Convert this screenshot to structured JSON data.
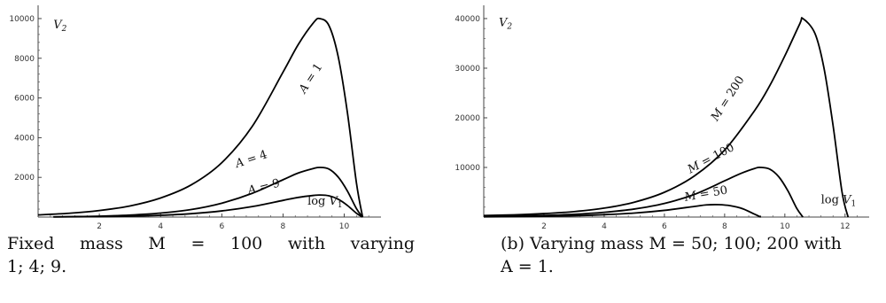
{
  "chart_data": [
    {
      "type": "line",
      "ylabel": "V",
      "ylabel_sub": "2",
      "xlabel": "log V",
      "xlabel_sub": "1",
      "xlim": [
        0,
        11.2
      ],
      "ylim": [
        0,
        10400
      ],
      "x_ticks": [
        "2",
        "4",
        "6",
        "8",
        "10"
      ],
      "x_tick_values": [
        2,
        4,
        6,
        8,
        10
      ],
      "y_ticks": [
        "2000",
        "4000",
        "6000",
        "8000",
        "10000"
      ],
      "y_tick_values": [
        2000,
        4000,
        6000,
        8000,
        10000
      ],
      "series": [
        {
          "name": "A = 1",
          "x": [
            0.0,
            1,
            2,
            3,
            4,
            5,
            6,
            7,
            8,
            8.5,
            9,
            9.2,
            9.5,
            9.8,
            10.1,
            10.4,
            10.6
          ],
          "y": [
            110,
            190,
            330,
            560,
            960,
            1620,
            2740,
            4580,
            7300,
            8700,
            9800,
            10000,
            9650,
            8100,
            5300,
            1700,
            0
          ]
        },
        {
          "name": "A = 4",
          "x": [
            0.5,
            1,
            2,
            3,
            4,
            5,
            6,
            7,
            8,
            8.5,
            9,
            9.2,
            9.5,
            9.8,
            10.1,
            10.4,
            10.6
          ],
          "y": [
            10,
            20,
            45,
            100,
            200,
            380,
            700,
            1200,
            1880,
            2220,
            2450,
            2500,
            2420,
            2020,
            1320,
            420,
            0
          ]
        },
        {
          "name": "A = 9",
          "x": [
            0.5,
            1,
            2,
            3,
            4,
            5,
            6,
            7,
            8,
            8.5,
            9,
            9.2,
            9.5,
            9.8,
            10.1,
            10.4,
            10.6
          ],
          "y": [
            5,
            10,
            20,
            45,
            90,
            170,
            310,
            530,
            840,
            990,
            1090,
            1110,
            1070,
            900,
            590,
            190,
            0
          ]
        }
      ],
      "curve_labels": [
        "A = 1",
        "A = 4",
        "A = 9"
      ]
    },
    {
      "type": "line",
      "ylabel": "V",
      "ylabel_sub": "2",
      "xlabel": "log V",
      "xlabel_sub": "1",
      "xlim": [
        0,
        12.8
      ],
      "ylim": [
        0,
        41600
      ],
      "x_ticks": [
        "2",
        "4",
        "6",
        "8",
        "10",
        "12"
      ],
      "x_tick_values": [
        2,
        4,
        6,
        8,
        10,
        12
      ],
      "y_ticks": [
        "10000",
        "20000",
        "30000",
        "40000"
      ],
      "y_tick_values": [
        10000,
        20000,
        30000,
        40000
      ],
      "series": [
        {
          "name": "M = 200",
          "x": [
            0,
            1,
            2,
            3,
            4,
            5,
            6,
            7,
            8,
            9,
            9.5,
            10,
            10.5,
            10.6,
            11,
            11.3,
            11.6,
            11.9,
            12.1
          ],
          "y": [
            300,
            450,
            700,
            1100,
            1800,
            3000,
            5000,
            8300,
            13500,
            21500,
            26500,
            32500,
            39000,
            40000,
            37000,
            30000,
            18500,
            5000,
            0
          ]
        },
        {
          "name": "M = 100",
          "x": [
            0,
            1,
            2,
            3,
            4,
            5,
            6,
            7,
            8,
            8.5,
            9,
            9.2,
            9.5,
            9.8,
            10.1,
            10.4,
            10.6
          ],
          "y": [
            110,
            190,
            330,
            560,
            960,
            1620,
            2740,
            4580,
            7300,
            8700,
            9800,
            10000,
            9650,
            8100,
            5300,
            1700,
            0
          ]
        },
        {
          "name": "M = 50",
          "x": [
            0,
            1,
            2,
            3,
            4,
            5,
            6,
            7,
            7.4,
            7.8,
            8.2,
            8.6,
            9.0,
            9.2
          ],
          "y": [
            50,
            90,
            160,
            280,
            480,
            800,
            1350,
            2150,
            2450,
            2500,
            2280,
            1680,
            560,
            0
          ]
        }
      ],
      "curve_labels": [
        "M = 200",
        "M = 100",
        "M = 50"
      ]
    }
  ],
  "captions": {
    "a_line1": "Fixed mass M = 100 with varying",
    "a_line2": "1; 4; 9.",
    "b_line1": "(b) Varying mass M = 50; 100; 200 with",
    "b_line2": "A = 1."
  }
}
